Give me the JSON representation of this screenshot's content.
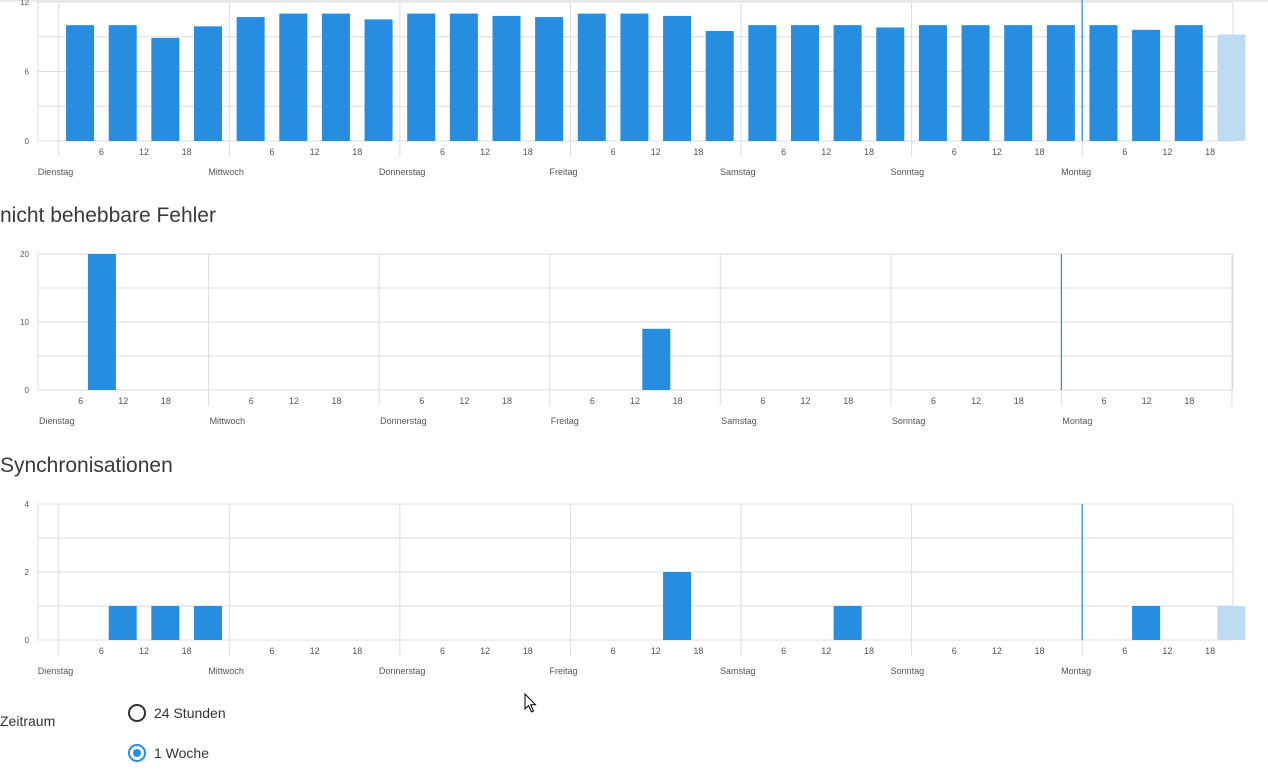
{
  "colors": {
    "bar": "#268de0",
    "bar_light": "#bddcf2",
    "grid": "#dcdcdc",
    "now_line": "#268de0"
  },
  "icons": {
    "cursor": "mouse-pointer-icon"
  },
  "sections": [
    {
      "title": ""
    },
    {
      "title": "nicht behebbare Fehler"
    },
    {
      "title": "Synchronisationen"
    }
  ],
  "chart_data": [
    {
      "type": "bar",
      "title": "",
      "xlabel": "",
      "ylabel": "",
      "ylim": [
        0,
        12
      ],
      "yticks": [
        "0",
        "6",
        "12"
      ],
      "day_labels": [
        "Dienstag",
        "Mittwoch",
        "Donnerstag",
        "Freitag",
        "Samstag",
        "Sonntag",
        "Montag"
      ],
      "hour_labels": [
        "6",
        "12",
        "18"
      ],
      "bars": [
        {
          "hour": 6,
          "value": 10
        },
        {
          "hour": 12,
          "value": 10
        },
        {
          "hour": 18,
          "value": 8.9
        },
        {
          "hour": 24,
          "value": 9.9
        },
        {
          "hour": 30,
          "value": 10.7
        },
        {
          "hour": 36,
          "value": 11
        },
        {
          "hour": 42,
          "value": 11
        },
        {
          "hour": 48,
          "value": 10.5
        },
        {
          "hour": 54,
          "value": 11
        },
        {
          "hour": 60,
          "value": 11
        },
        {
          "hour": 66,
          "value": 10.8
        },
        {
          "hour": 72,
          "value": 10.7
        },
        {
          "hour": 78,
          "value": 11
        },
        {
          "hour": 84,
          "value": 11
        },
        {
          "hour": 90,
          "value": 10.8
        },
        {
          "hour": 96,
          "value": 9.5
        },
        {
          "hour": 102,
          "value": 10
        },
        {
          "hour": 108,
          "value": 10
        },
        {
          "hour": 114,
          "value": 10
        },
        {
          "hour": 120,
          "value": 9.8
        },
        {
          "hour": 126,
          "value": 10
        },
        {
          "hour": 132,
          "value": 10
        },
        {
          "hour": 138,
          "value": 10
        },
        {
          "hour": 144,
          "value": 10
        },
        {
          "hour": 150,
          "value": 10
        },
        {
          "hour": 156,
          "value": 9.6
        },
        {
          "hour": 162,
          "value": 10
        },
        {
          "hour": 168,
          "value": 9.2,
          "partial": true
        }
      ]
    },
    {
      "type": "bar",
      "title": "nicht behebbare Fehler",
      "xlabel": "",
      "ylabel": "",
      "ylim": [
        0,
        20
      ],
      "yticks": [
        "0",
        "10",
        "20"
      ],
      "day_labels": [
        "Dienstag",
        "Mittwoch",
        "Donnerstag",
        "Freitag",
        "Samstag",
        "Sonntag",
        "Montag"
      ],
      "hour_labels": [
        "6",
        "12",
        "18"
      ],
      "bars": [
        {
          "hour": 12,
          "value": 20
        },
        {
          "hour": 90,
          "value": 9
        }
      ]
    },
    {
      "type": "bar",
      "title": "Synchronisationen",
      "xlabel": "",
      "ylabel": "",
      "ylim": [
        0,
        4
      ],
      "yticks": [
        "0",
        "2",
        "4"
      ],
      "day_labels": [
        "Dienstag",
        "Mittwoch",
        "Donnerstag",
        "Freitag",
        "Samstag",
        "Sonntag",
        "Montag"
      ],
      "hour_labels": [
        "6",
        "12",
        "18"
      ],
      "bars": [
        {
          "hour": 12,
          "value": 1
        },
        {
          "hour": 18,
          "value": 1
        },
        {
          "hour": 24,
          "value": 1
        },
        {
          "hour": 90,
          "value": 2
        },
        {
          "hour": 114,
          "value": 1
        },
        {
          "hour": 156,
          "value": 1
        },
        {
          "hour": 168,
          "value": 1,
          "partial": true
        }
      ]
    }
  ],
  "form": {
    "label": "Zeitraum",
    "options": [
      {
        "label": "24 Stunden",
        "checked": false
      },
      {
        "label": "1 Woche",
        "checked": true
      }
    ]
  }
}
